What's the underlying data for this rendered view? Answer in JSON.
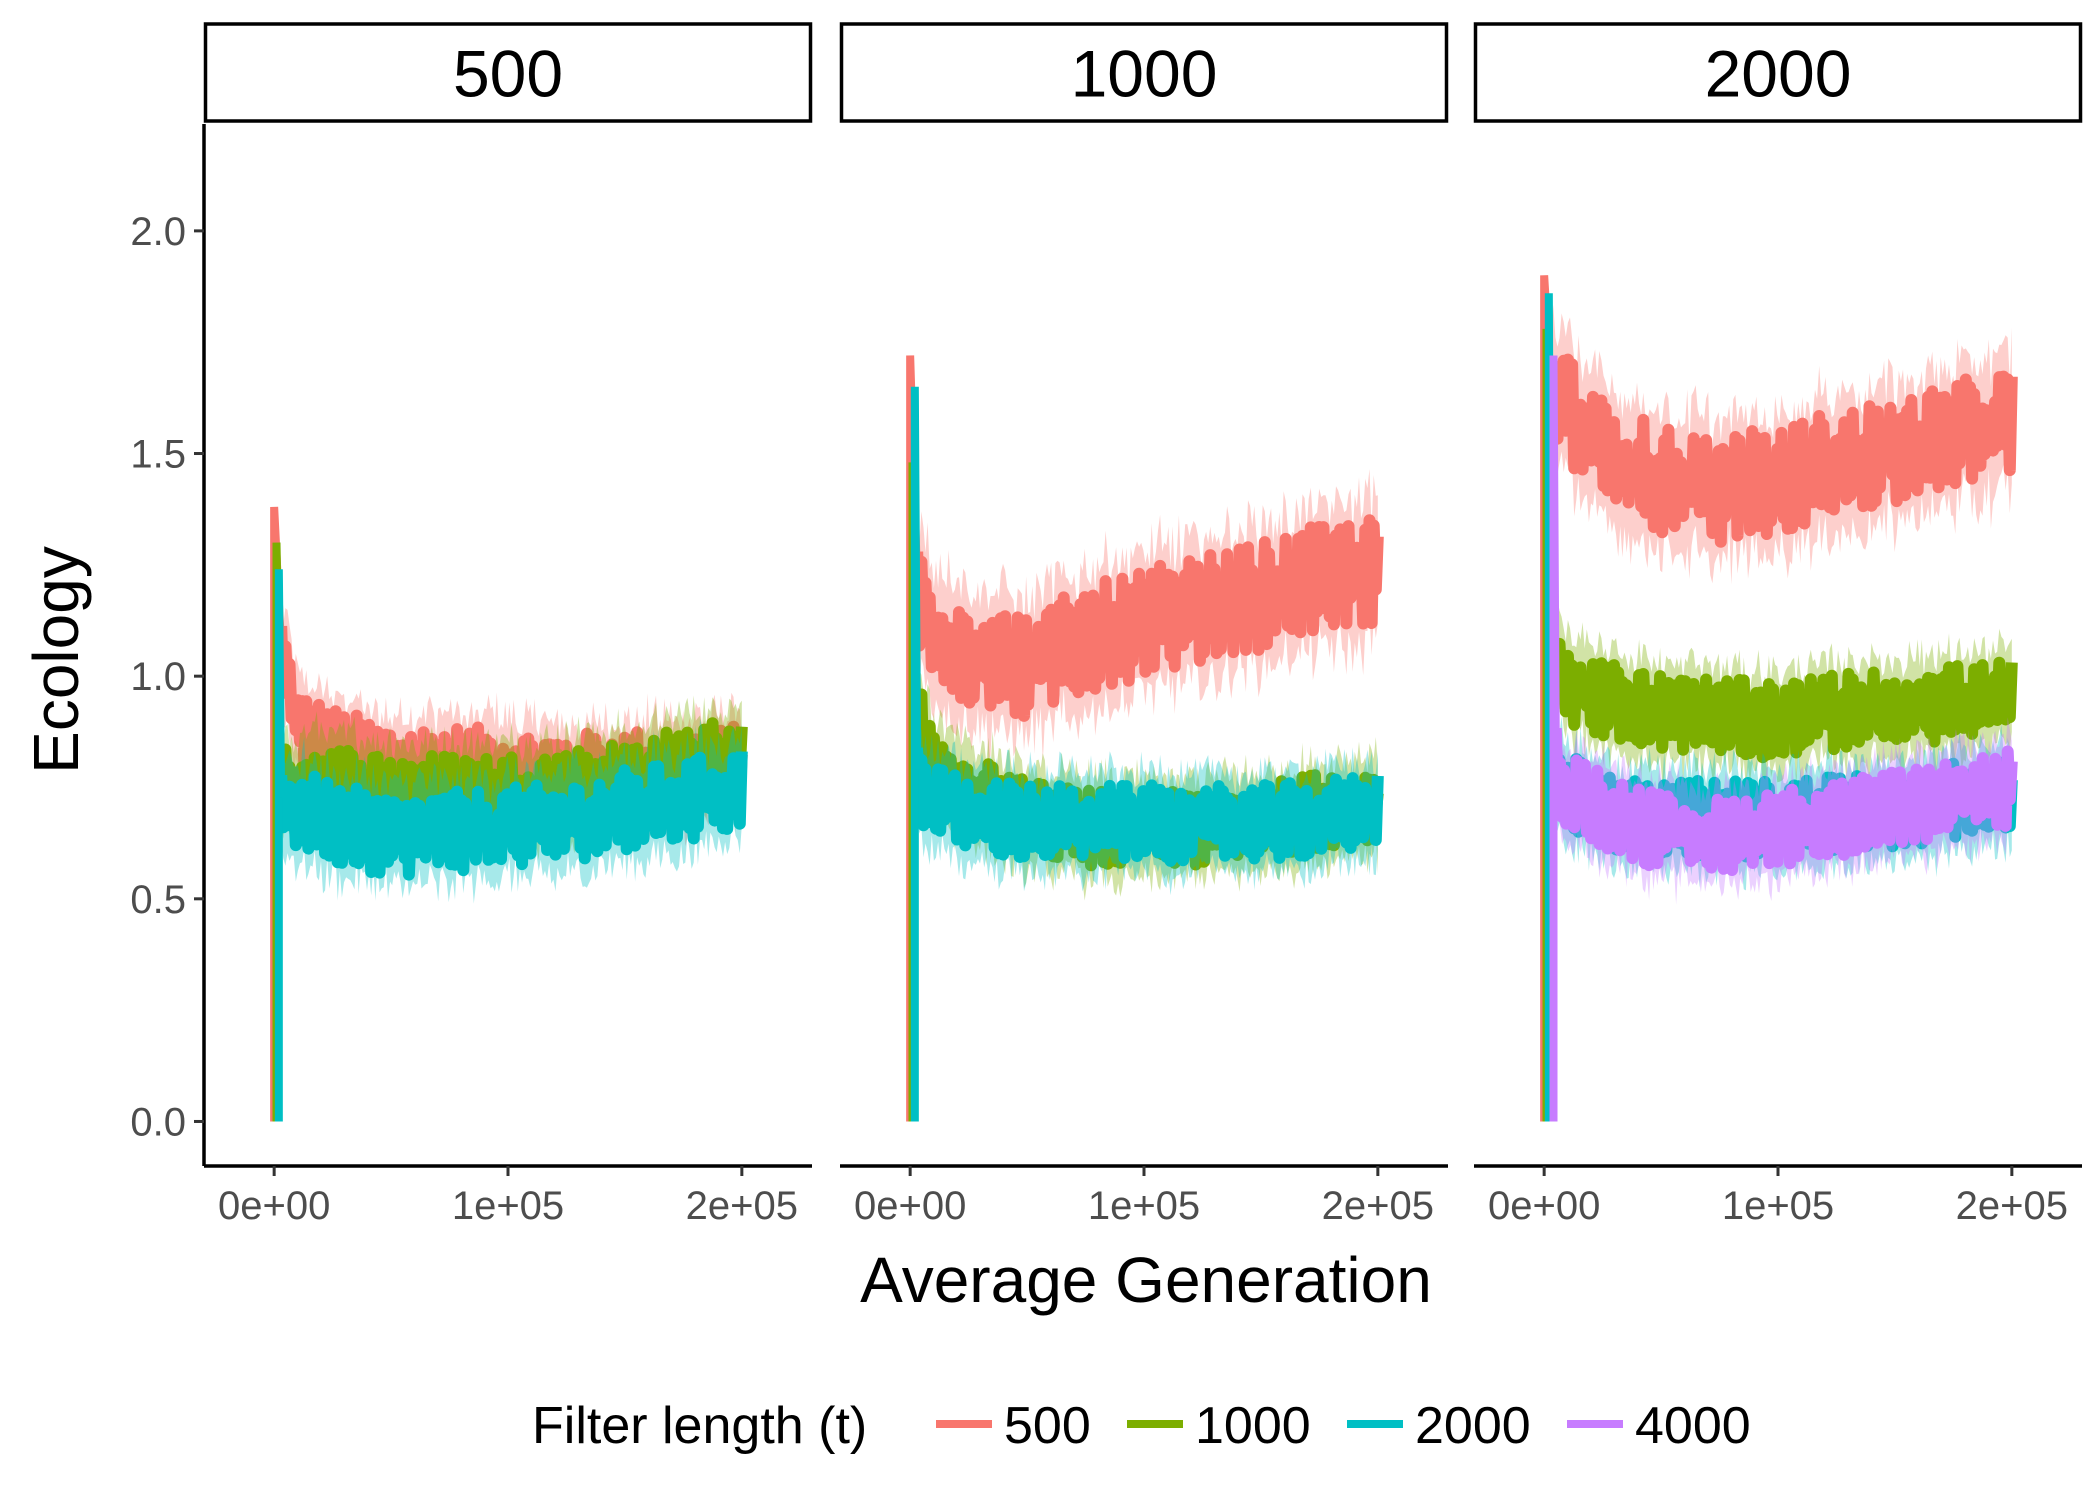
{
  "chart_data": {
    "type": "line",
    "facet_label": "",
    "facets": [
      "500",
      "1000",
      "2000"
    ],
    "xlabel": "Average Generation",
    "ylabel": "Ecology",
    "xlim": [
      -30000,
      230000
    ],
    "ylim": [
      -0.1,
      2.24
    ],
    "x_ticks": [
      0,
      100000,
      200000
    ],
    "x_tick_labels": [
      "0e+00",
      "1e+05",
      "2e+05"
    ],
    "y_ticks": [
      0,
      0.5,
      1.0,
      1.5,
      2.0
    ],
    "y_tick_labels": [
      "0.0",
      "0.5",
      "1.0",
      "1.5",
      "2.0"
    ],
    "grid": false,
    "legend": {
      "title": "Filter length (t)",
      "position": "bottom",
      "entries": [
        "500",
        "1000",
        "2000",
        "4000"
      ]
    },
    "colors": {
      "500": "#F8766D",
      "1000": "#7CAE00",
      "2000": "#00BFC4",
      "4000": "#C77CFF"
    },
    "series": [
      {
        "facet": "500",
        "name": "500",
        "spike_x": 0,
        "spike_peak": 1.38,
        "x": [
          3000,
          10000,
          25000,
          50000,
          75000,
          100000,
          125000,
          150000,
          175000,
          200000
        ],
        "mean": [
          1.05,
          0.88,
          0.84,
          0.8,
          0.8,
          0.79,
          0.78,
          0.79,
          0.79,
          0.8
        ],
        "halfwidth": 0.05,
        "noise": 0.08
      },
      {
        "facet": "500",
        "name": "1000",
        "spike_x": 1000,
        "spike_peak": 1.3,
        "x": [
          3000,
          10000,
          25000,
          50000,
          75000,
          100000,
          125000,
          150000,
          175000,
          200000
        ],
        "mean": [
          0.75,
          0.76,
          0.76,
          0.74,
          0.74,
          0.74,
          0.75,
          0.77,
          0.8,
          0.83
        ],
        "halfwidth": 0.05,
        "noise": 0.07
      },
      {
        "facet": "500",
        "name": "2000",
        "spike_x": 2000,
        "spike_peak": 1.24,
        "x": [
          3000,
          10000,
          25000,
          50000,
          75000,
          100000,
          125000,
          150000,
          175000,
          200000
        ],
        "mean": [
          0.72,
          0.7,
          0.67,
          0.64,
          0.65,
          0.66,
          0.67,
          0.7,
          0.72,
          0.75
        ],
        "halfwidth": 0.05,
        "noise": 0.08
      },
      {
        "facet": "1000",
        "name": "500",
        "spike_x": 0,
        "spike_peak": 1.72,
        "x": [
          3000,
          10000,
          25000,
          50000,
          75000,
          100000,
          125000,
          150000,
          175000,
          200000
        ],
        "mean": [
          1.2,
          1.1,
          1.05,
          1.02,
          1.08,
          1.12,
          1.15,
          1.18,
          1.22,
          1.24
        ],
        "halfwidth": 0.07,
        "noise": 0.1
      },
      {
        "facet": "1000",
        "name": "1000",
        "spike_x": 1000,
        "spike_peak": 1.48,
        "x": [
          3000,
          10000,
          25000,
          50000,
          75000,
          100000,
          125000,
          150000,
          175000,
          200000
        ],
        "mean": [
          0.9,
          0.8,
          0.74,
          0.68,
          0.66,
          0.65,
          0.66,
          0.67,
          0.7,
          0.72
        ],
        "halfwidth": 0.05,
        "noise": 0.07
      },
      {
        "facet": "1000",
        "name": "2000",
        "spike_x": 2000,
        "spike_peak": 1.65,
        "x": [
          3000,
          10000,
          25000,
          50000,
          75000,
          100000,
          125000,
          150000,
          175000,
          200000
        ],
        "mean": [
          0.76,
          0.72,
          0.69,
          0.67,
          0.67,
          0.67,
          0.67,
          0.67,
          0.68,
          0.7
        ],
        "halfwidth": 0.05,
        "noise": 0.07
      },
      {
        "facet": "2000",
        "name": "500",
        "spike_x": 0,
        "spike_peak": 1.9,
        "x": [
          3000,
          10000,
          25000,
          50000,
          75000,
          100000,
          125000,
          150000,
          175000,
          200000
        ],
        "mean": [
          1.65,
          1.6,
          1.5,
          1.44,
          1.42,
          1.44,
          1.48,
          1.5,
          1.54,
          1.57
        ],
        "halfwidth": 0.07,
        "noise": 0.1
      },
      {
        "facet": "2000",
        "name": "1000",
        "spike_x": 1000,
        "spike_peak": 1.78,
        "x": [
          3000,
          10000,
          25000,
          50000,
          75000,
          100000,
          125000,
          150000,
          175000,
          200000
        ],
        "mean": [
          1.05,
          0.98,
          0.95,
          0.92,
          0.91,
          0.9,
          0.92,
          0.93,
          0.94,
          0.95
        ],
        "halfwidth": 0.05,
        "noise": 0.07
      },
      {
        "facet": "2000",
        "name": "2000",
        "spike_x": 2000,
        "spike_peak": 1.86,
        "x": [
          3000,
          10000,
          25000,
          50000,
          75000,
          100000,
          125000,
          150000,
          175000,
          200000
        ],
        "mean": [
          0.78,
          0.74,
          0.7,
          0.68,
          0.68,
          0.68,
          0.69,
          0.7,
          0.72,
          0.74
        ],
        "halfwidth": 0.05,
        "noise": 0.07
      },
      {
        "facet": "2000",
        "name": "4000",
        "spike_x": 4000,
        "spike_peak": 1.72,
        "x": [
          5000,
          10000,
          25000,
          50000,
          75000,
          100000,
          125000,
          150000,
          175000,
          200000
        ],
        "mean": [
          0.8,
          0.74,
          0.7,
          0.65,
          0.64,
          0.66,
          0.68,
          0.7,
          0.72,
          0.75
        ],
        "halfwidth": 0.05,
        "noise": 0.07
      }
    ]
  }
}
